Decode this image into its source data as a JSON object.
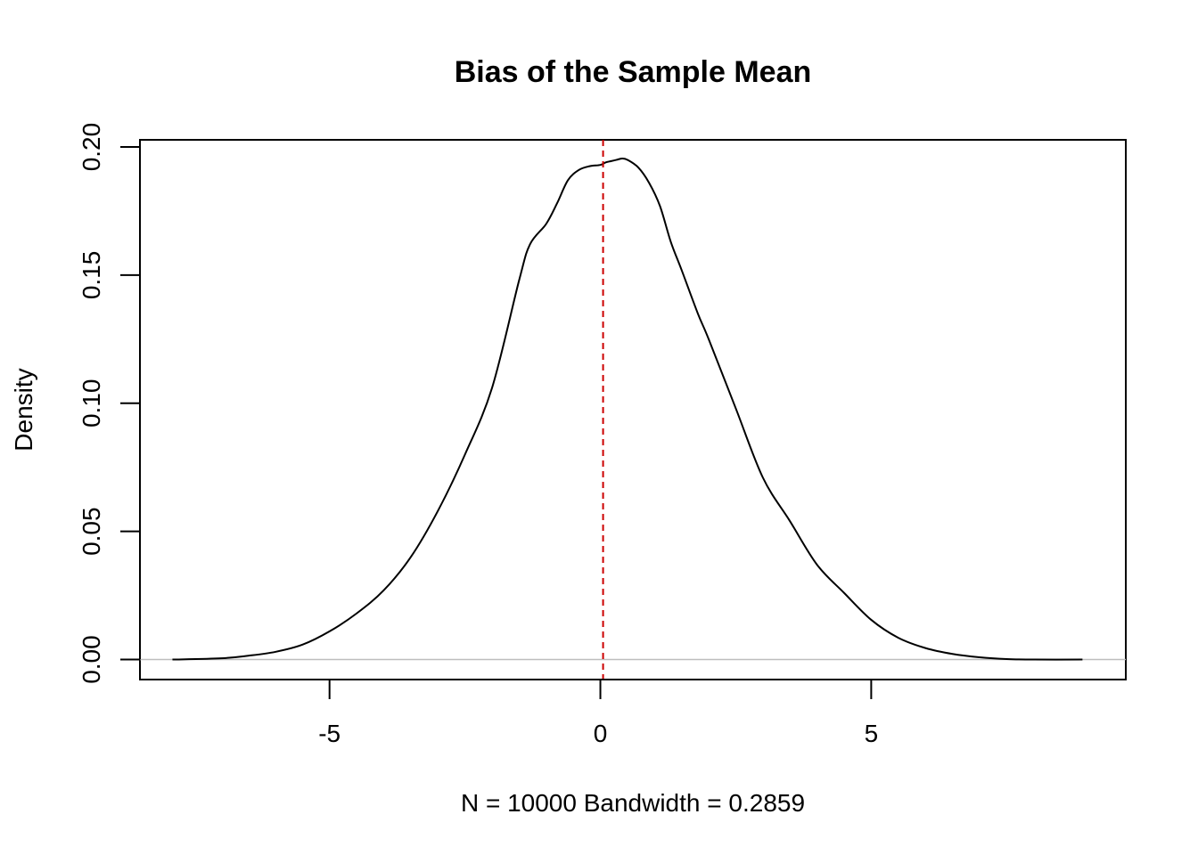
{
  "chart_data": {
    "type": "line",
    "title": "Bias of the Sample Mean",
    "xlabel": "N = 10000   Bandwidth = 0.2859",
    "ylabel": "Density",
    "xlim": [
      -8.5,
      9.7
    ],
    "ylim": [
      -0.0078,
      0.2028
    ],
    "x_ticks": [
      -5,
      0,
      5
    ],
    "x_tick_labels": [
      "-5",
      "0",
      "5"
    ],
    "y_ticks": [
      0.0,
      0.05,
      0.1,
      0.15,
      0.2
    ],
    "y_tick_labels": [
      "0.00",
      "0.05",
      "0.10",
      "0.15",
      "0.20"
    ],
    "grid": false,
    "legend": "none",
    "baseline": {
      "y": 0,
      "color": "#bebebe"
    },
    "reference_line": {
      "x": 0.05,
      "color": "#cc0000",
      "style": "dashed"
    },
    "series": [
      {
        "color": "#000000",
        "x": [
          -7.9,
          -7.0,
          -6.5,
          -6.0,
          -5.5,
          -5.0,
          -4.5,
          -4.0,
          -3.5,
          -3.0,
          -2.5,
          -2.0,
          -1.5,
          -1.3,
          -1.0,
          -0.8,
          -0.6,
          -0.4,
          -0.2,
          0.0,
          0.1,
          0.2,
          0.3,
          0.4,
          0.5,
          0.7,
          0.9,
          1.1,
          1.3,
          1.5,
          1.8,
          2.0,
          2.5,
          3.0,
          3.5,
          4.0,
          4.5,
          5.0,
          5.5,
          6.0,
          6.5,
          7.0,
          7.5,
          8.0,
          8.9
        ],
        "y": [
          0.0,
          0.0005,
          0.0015,
          0.003,
          0.0058,
          0.011,
          0.018,
          0.027,
          0.04,
          0.058,
          0.08,
          0.106,
          0.148,
          0.162,
          0.17,
          0.178,
          0.187,
          0.191,
          0.1925,
          0.193,
          0.194,
          0.1945,
          0.195,
          0.1955,
          0.195,
          0.192,
          0.186,
          0.177,
          0.163,
          0.152,
          0.135,
          0.125,
          0.098,
          0.071,
          0.054,
          0.037,
          0.026,
          0.0155,
          0.0085,
          0.0045,
          0.0022,
          0.0009,
          0.0002,
          0.0,
          0.0
        ]
      }
    ]
  }
}
